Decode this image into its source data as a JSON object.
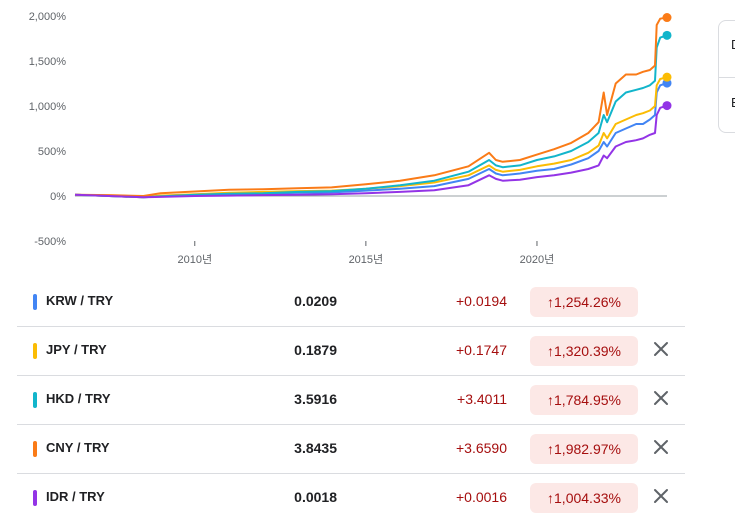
{
  "chart_data": {
    "type": "line",
    "y_tick_labels": [
      "2,000%",
      "1,500%",
      "1,000%",
      "500%",
      "0%",
      "-500%"
    ],
    "y_ticks": [
      2000,
      1500,
      1000,
      500,
      0,
      -500
    ],
    "ylim": [
      -500,
      2000
    ],
    "x_tick_labels": [
      "2010년",
      "2015년",
      "2020년"
    ],
    "x_ticks": [
      2010,
      2015,
      2020
    ],
    "xlim": [
      2006.5,
      2023.8
    ],
    "grid": false,
    "x": [
      2006.5,
      2007.5,
      2008.5,
      2009,
      2010,
      2011,
      2012,
      2013,
      2014,
      2015,
      2016,
      2017,
      2018,
      2018.6,
      2018.8,
      2019,
      2019.5,
      2020,
      2020.5,
      2021,
      2021.5,
      2021.8,
      2021.95,
      2022.05,
      2022.3,
      2022.6,
      2022.9,
      2023.1,
      2023.3,
      2023.45,
      2023.5,
      2023.6,
      2023.8
    ],
    "series": [
      {
        "color": "#4285f4",
        "values": [
          15,
          0,
          -15,
          -5,
          10,
          20,
          25,
          35,
          40,
          60,
          80,
          110,
          190,
          300,
          250,
          230,
          250,
          280,
          300,
          350,
          420,
          500,
          600,
          550,
          700,
          750,
          800,
          800,
          850,
          900,
          1150,
          1230,
          1254.26
        ]
      },
      {
        "color": "#fbbc04",
        "values": [
          15,
          0,
          -15,
          5,
          20,
          35,
          45,
          55,
          60,
          80,
          110,
          150,
          230,
          340,
          290,
          270,
          290,
          330,
          360,
          400,
          480,
          560,
          700,
          640,
          800,
          850,
          900,
          920,
          950,
          1000,
          1230,
          1300,
          1320.39
        ]
      },
      {
        "color": "#12b5cb",
        "values": [
          15,
          0,
          -15,
          -5,
          15,
          25,
          30,
          45,
          55,
          80,
          120,
          170,
          270,
          400,
          340,
          320,
          340,
          400,
          440,
          500,
          600,
          700,
          900,
          820,
          1050,
          1150,
          1180,
          1200,
          1230,
          1280,
          1650,
          1760,
          1784.95
        ]
      },
      {
        "color": "#fa7b17",
        "values": [
          15,
          10,
          0,
          30,
          50,
          70,
          75,
          85,
          95,
          130,
          170,
          230,
          330,
          480,
          400,
          380,
          400,
          460,
          520,
          590,
          700,
          820,
          1150,
          900,
          1250,
          1350,
          1350,
          1380,
          1400,
          1450,
          1900,
          1970,
          1982.97
        ]
      },
      {
        "color": "#9334e6",
        "values": [
          15,
          0,
          -15,
          -10,
          0,
          5,
          10,
          15,
          20,
          30,
          45,
          65,
          120,
          230,
          190,
          170,
          180,
          210,
          230,
          260,
          300,
          340,
          450,
          420,
          550,
          600,
          620,
          640,
          680,
          700,
          900,
          980,
          1004.33
        ]
      }
    ]
  },
  "rows": [
    {
      "pair": "KRW / TRY",
      "price": "0.0209",
      "change": "+0.0194",
      "pct": "↑1,254.26%",
      "color": "#4285f4"
    },
    {
      "pair": "JPY / TRY",
      "price": "0.1879",
      "change": "+0.1747",
      "pct": "↑1,320.39%",
      "color": "#fbbc04"
    },
    {
      "pair": "HKD / TRY",
      "price": "3.5916",
      "change": "+3.4011",
      "pct": "↑1,784.95%",
      "color": "#12b5cb"
    },
    {
      "pair": "CNY / TRY",
      "price": "3.8435",
      "change": "+3.6590",
      "pct": "↑1,982.97%",
      "color": "#fa7b17"
    },
    {
      "pair": "IDR / TRY",
      "price": "0.0018",
      "change": "+0.0016",
      "pct": "↑1,004.33%",
      "color": "#9334e6"
    }
  ],
  "side_card": {
    "item_1": "D",
    "item_2": "E"
  },
  "remove_icon": "close-icon"
}
